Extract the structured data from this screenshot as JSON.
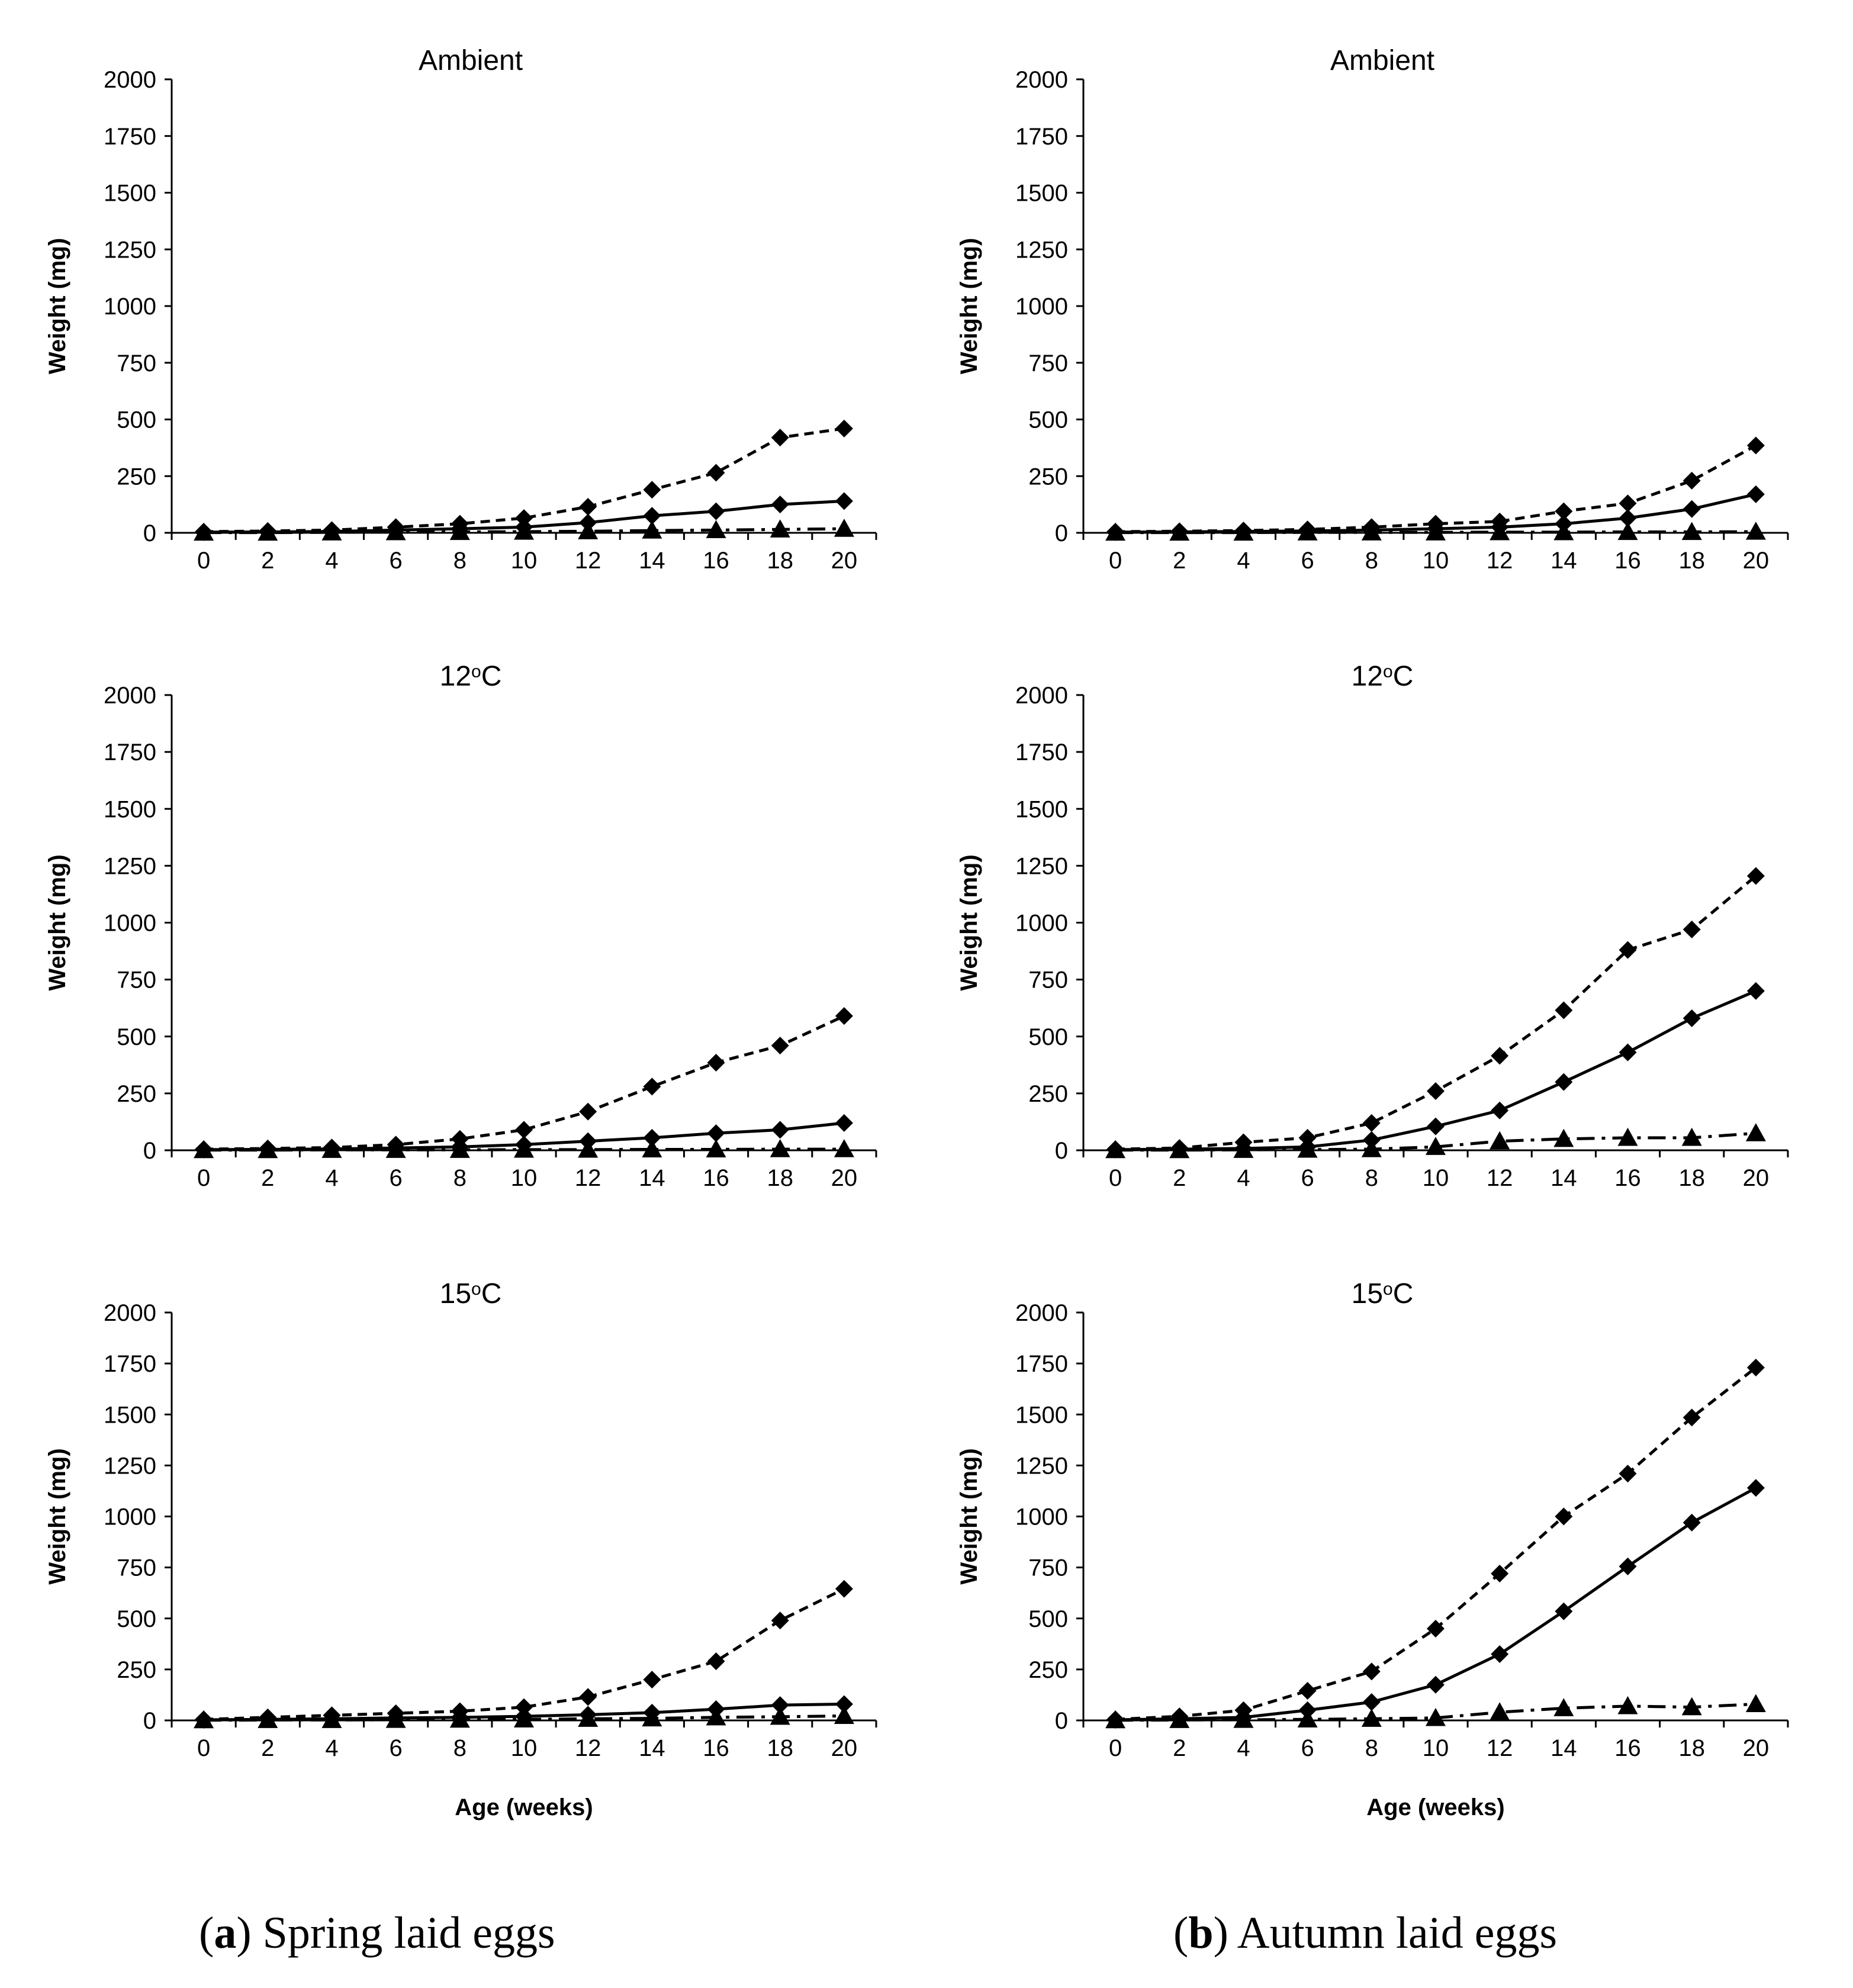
{
  "chart_data": [
    {
      "type": "line",
      "title": "Ambient",
      "group": "Spring laid eggs",
      "xlabel": "",
      "ylabel": "Weight (mg)",
      "ylim": [
        0,
        2000
      ],
      "yticks": [
        0,
        250,
        500,
        750,
        1000,
        1250,
        1500,
        1750,
        2000
      ],
      "x": [
        0,
        2,
        4,
        6,
        8,
        10,
        12,
        14,
        16,
        18,
        20
      ],
      "series": [
        {
          "name": "upper (dashed, diamond)",
          "style": "dashed",
          "marker": "diamond",
          "values": [
            5,
            8,
            12,
            25,
            40,
            65,
            115,
            190,
            265,
            420,
            460
          ]
        },
        {
          "name": "middle (solid, diamond)",
          "style": "solid",
          "marker": "diamond",
          "values": [
            3,
            4,
            6,
            12,
            18,
            25,
            45,
            75,
            95,
            125,
            140
          ]
        },
        {
          "name": "lower (dash-dot, triangle)",
          "style": "dashdot",
          "marker": "triangle",
          "values": [
            1,
            1,
            2,
            3,
            4,
            5,
            7,
            10,
            12,
            15,
            18
          ]
        }
      ]
    },
    {
      "type": "line",
      "title": "Ambient",
      "group": "Autumn laid eggs",
      "xlabel": "",
      "ylabel": "Weight (mg)",
      "ylim": [
        0,
        2000
      ],
      "yticks": [
        0,
        250,
        500,
        750,
        1000,
        1250,
        1500,
        1750,
        2000
      ],
      "x": [
        0,
        2,
        4,
        6,
        8,
        10,
        12,
        14,
        16,
        18,
        20
      ],
      "series": [
        {
          "name": "upper (dashed, diamond)",
          "style": "dashed",
          "marker": "diamond",
          "values": [
            5,
            7,
            10,
            15,
            25,
            40,
            50,
            95,
            130,
            230,
            385
          ]
        },
        {
          "name": "middle (solid, diamond)",
          "style": "solid",
          "marker": "diamond",
          "values": [
            3,
            4,
            6,
            8,
            12,
            18,
            25,
            40,
            65,
            105,
            170
          ]
        },
        {
          "name": "lower (dash-dot, triangle)",
          "style": "dashdot",
          "marker": "triangle",
          "values": [
            1,
            1,
            1,
            2,
            2,
            2,
            3,
            3,
            4,
            4,
            5
          ]
        }
      ]
    },
    {
      "type": "line",
      "title": "12",
      "title_sup": "o",
      "title_suffix": "C",
      "group": "Spring laid eggs",
      "xlabel": "",
      "ylabel": "Weight (mg)",
      "ylim": [
        0,
        2000
      ],
      "yticks": [
        0,
        250,
        500,
        750,
        1000,
        1250,
        1500,
        1750,
        2000
      ],
      "x": [
        0,
        2,
        4,
        6,
        8,
        10,
        12,
        14,
        16,
        18,
        20
      ],
      "series": [
        {
          "name": "upper (dashed, diamond)",
          "style": "dashed",
          "marker": "diamond",
          "values": [
            5,
            8,
            12,
            25,
            50,
            90,
            170,
            280,
            385,
            460,
            590
          ]
        },
        {
          "name": "middle (solid, diamond)",
          "style": "solid",
          "marker": "diamond",
          "values": [
            3,
            4,
            6,
            10,
            15,
            25,
            40,
            55,
            75,
            90,
            120
          ]
        },
        {
          "name": "lower (dash-dot, triangle)",
          "style": "dashdot",
          "marker": "triangle",
          "values": [
            1,
            1,
            2,
            2,
            2,
            3,
            3,
            4,
            4,
            5,
            5
          ]
        }
      ]
    },
    {
      "type": "line",
      "title": "12",
      "title_sup": "o",
      "title_suffix": "C",
      "group": "Autumn laid eggs",
      "xlabel": "",
      "ylabel": "Weight (mg)",
      "ylim": [
        0,
        2000
      ],
      "yticks": [
        0,
        250,
        500,
        750,
        1000,
        1250,
        1500,
        1750,
        2000
      ],
      "x": [
        0,
        2,
        4,
        6,
        8,
        10,
        12,
        14,
        16,
        18,
        20
      ],
      "series": [
        {
          "name": "upper (dashed, diamond)",
          "style": "dashed",
          "marker": "diamond",
          "values": [
            5,
            10,
            35,
            55,
            120,
            260,
            415,
            615,
            880,
            970,
            1205
          ]
        },
        {
          "name": "middle (solid, diamond)",
          "style": "solid",
          "marker": "diamond",
          "values": [
            3,
            5,
            8,
            15,
            45,
            105,
            175,
            300,
            430,
            580,
            700
          ]
        },
        {
          "name": "lower (dash-dot, triangle)",
          "style": "dashdot",
          "marker": "triangle",
          "values": [
            1,
            1,
            2,
            3,
            5,
            15,
            40,
            50,
            55,
            55,
            75
          ]
        }
      ]
    },
    {
      "type": "line",
      "title": "15",
      "title_sup": "o",
      "title_suffix": "C",
      "group": "Spring laid eggs",
      "xlabel": "Age (weeks)",
      "ylabel": "Weight (mg)",
      "ylim": [
        0,
        2000
      ],
      "yticks": [
        0,
        250,
        500,
        750,
        1000,
        1250,
        1500,
        1750,
        2000
      ],
      "x": [
        0,
        2,
        4,
        6,
        8,
        10,
        12,
        14,
        16,
        18,
        20
      ],
      "series": [
        {
          "name": "upper (dashed, diamond)",
          "style": "dashed",
          "marker": "diamond",
          "values": [
            5,
            15,
            25,
            35,
            45,
            65,
            115,
            200,
            290,
            490,
            645
          ]
        },
        {
          "name": "middle (solid, diamond)",
          "style": "solid",
          "marker": "diamond",
          "values": [
            3,
            5,
            8,
            12,
            15,
            20,
            28,
            38,
            55,
            75,
            80
          ]
        },
        {
          "name": "lower (dash-dot, triangle)",
          "style": "dashdot",
          "marker": "triangle",
          "values": [
            1,
            2,
            2,
            3,
            4,
            5,
            8,
            10,
            15,
            18,
            22
          ]
        }
      ]
    },
    {
      "type": "line",
      "title": "15",
      "title_sup": "o",
      "title_suffix": "C",
      "group": "Autumn laid eggs",
      "xlabel": "Age (weeks)",
      "ylabel": "Weight (mg)",
      "ylim": [
        0,
        2000
      ],
      "yticks": [
        0,
        250,
        500,
        750,
        1000,
        1250,
        1500,
        1750,
        2000
      ],
      "x": [
        0,
        2,
        4,
        6,
        8,
        10,
        12,
        14,
        16,
        18,
        20
      ],
      "series": [
        {
          "name": "upper (dashed, diamond)",
          "style": "dashed",
          "marker": "diamond",
          "values": [
            5,
            20,
            50,
            145,
            240,
            450,
            720,
            1000,
            1210,
            1485,
            1730
          ]
        },
        {
          "name": "middle (solid, diamond)",
          "style": "solid",
          "marker": "diamond",
          "values": [
            3,
            8,
            15,
            50,
            90,
            175,
            325,
            535,
            755,
            970,
            1140
          ]
        },
        {
          "name": "lower (dash-dot, triangle)",
          "style": "dashdot",
          "marker": "triangle",
          "values": [
            1,
            2,
            3,
            5,
            8,
            12,
            40,
            60,
            70,
            65,
            80
          ]
        }
      ]
    }
  ],
  "captions": {
    "a": {
      "letter": "a",
      "text": " Spring laid eggs"
    },
    "b": {
      "letter": "b",
      "text": " Autumn laid eggs"
    }
  }
}
